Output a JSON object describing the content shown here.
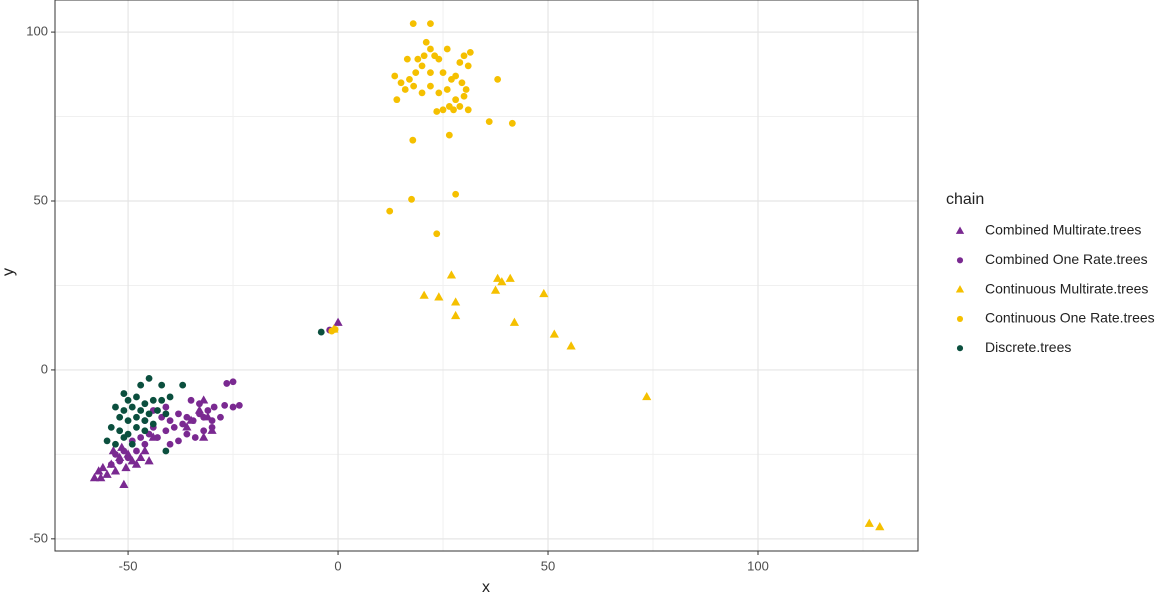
{
  "chart_data": {
    "type": "scatter",
    "x_label": "x",
    "y_label": "y",
    "legend_title": "chain",
    "legend_position": "right",
    "grid": true,
    "xlim": [
      -67.4,
      138.1
    ],
    "ylim": [
      -53.6,
      109.5
    ],
    "xticks": [
      -50,
      0,
      50,
      100
    ],
    "yticks": [
      -50,
      0,
      50,
      100
    ],
    "series": [
      {
        "name": "Combined Multirate.trees",
        "color": "#7a2991",
        "marker": "triangle",
        "x": [
          -58,
          -57,
          -56,
          -56.5,
          -55,
          -54,
          -53,
          -52,
          -51,
          -50.5,
          -50,
          -49,
          -48,
          -47,
          -46,
          -45,
          -53.5,
          -51.5,
          -32,
          -33,
          -31,
          -30,
          -32,
          -35,
          -36,
          -44,
          0
        ],
        "y": [
          -32,
          -30,
          -29,
          -32,
          -31,
          -28,
          -30,
          -26,
          -34,
          -29,
          -25,
          -27,
          -28,
          -26,
          -24,
          -27,
          -24,
          -23,
          -9,
          -12,
          -14,
          -18,
          -20,
          -15,
          -17,
          -20,
          14
        ]
      },
      {
        "name": "Combined One Rate.trees",
        "color": "#7a2991",
        "marker": "circle",
        "x": [
          -25,
          -26.5,
          -23.5,
          -25,
          -27,
          -29.5,
          -31,
          -30,
          -32,
          -33,
          -34.5,
          -36,
          -37,
          -38,
          -39,
          -40,
          -41,
          -42,
          -43,
          -44,
          -45,
          -46,
          -47,
          -48,
          -49,
          -50,
          -51,
          -52,
          -53,
          -54,
          -44,
          -40,
          -38,
          -36,
          -34,
          -32,
          -28,
          -30,
          -33,
          -35,
          -41,
          -46,
          -2
        ],
        "y": [
          -3.5,
          -4,
          -10.5,
          -11,
          -10.5,
          -11,
          -12,
          -15,
          -14,
          -13,
          -15,
          -14,
          -16,
          -13,
          -17,
          -15,
          -18,
          -14,
          -20,
          -17,
          -19,
          -22,
          -20,
          -24,
          -21,
          -26,
          -24,
          -27,
          -25,
          -28,
          -12,
          -22,
          -21,
          -19,
          -20,
          -18,
          -14,
          -17,
          -10,
          -9,
          -11,
          -15,
          11.8
        ]
      },
      {
        "name": "Continuous Multirate.trees",
        "color": "#f5c000",
        "marker": "triangle",
        "x": [
          27,
          20.5,
          24,
          28,
          28,
          38,
          39,
          41,
          37.5,
          42,
          49,
          51.5,
          55.5,
          73.5,
          126.5,
          129,
          -1
        ],
        "y": [
          28,
          22,
          21.5,
          20,
          16,
          27,
          26,
          27,
          23.5,
          14,
          22.5,
          10.5,
          7,
          -8,
          -45.5,
          -46.5,
          12
        ]
      },
      {
        "name": "Continuous One Rate.trees",
        "color": "#f5c000",
        "marker": "circle",
        "x": [
          17.9,
          22,
          21,
          22,
          23,
          16.5,
          19,
          20.5,
          24,
          26,
          29,
          30,
          31,
          31.5,
          13.5,
          15,
          17,
          18.5,
          20,
          22,
          25,
          27,
          28,
          29.5,
          30.5,
          16,
          18,
          20,
          22,
          24,
          26,
          28,
          30,
          14,
          26.5,
          27.5,
          29,
          31,
          23.5,
          25,
          26.5,
          17.8,
          38,
          36,
          41.5,
          28,
          17.5,
          12.3,
          23.5,
          -1.5,
          -0.7
        ],
        "y": [
          102.5,
          102.5,
          97,
          95,
          93,
          92,
          92,
          93,
          92,
          95,
          91,
          93,
          90,
          94,
          87,
          85,
          86,
          88,
          90,
          88,
          88,
          86,
          87,
          85,
          83,
          83,
          84,
          82,
          84,
          82,
          83,
          80,
          81,
          80,
          78,
          77,
          78,
          77,
          76.5,
          77,
          69.5,
          68,
          86,
          73.5,
          73,
          52,
          50.5,
          47,
          40.3,
          11.5,
          12
        ]
      },
      {
        "name": "Discrete.trees",
        "color": "#0b4f3e",
        "marker": "circle",
        "x": [
          -45,
          -47,
          -42,
          -37,
          -51,
          -50,
          -48,
          -46,
          -44,
          -42,
          -40,
          -53,
          -51,
          -49,
          -47,
          -45,
          -43,
          -41,
          -52,
          -50,
          -48,
          -46,
          -44,
          -54,
          -52,
          -50,
          -48,
          -46,
          -55,
          -53,
          -51,
          -49,
          -41,
          -4
        ],
        "y": [
          -2.5,
          -4.5,
          -4.5,
          -4.5,
          -7,
          -9,
          -8,
          -10,
          -9,
          -9,
          -8,
          -11,
          -12,
          -11,
          -12,
          -13,
          -12,
          -13,
          -14,
          -15,
          -14,
          -15,
          -16,
          -17,
          -18,
          -19,
          -17,
          -18,
          -21,
          -22,
          -20,
          -22,
          -24,
          11.2
        ]
      }
    ]
  }
}
